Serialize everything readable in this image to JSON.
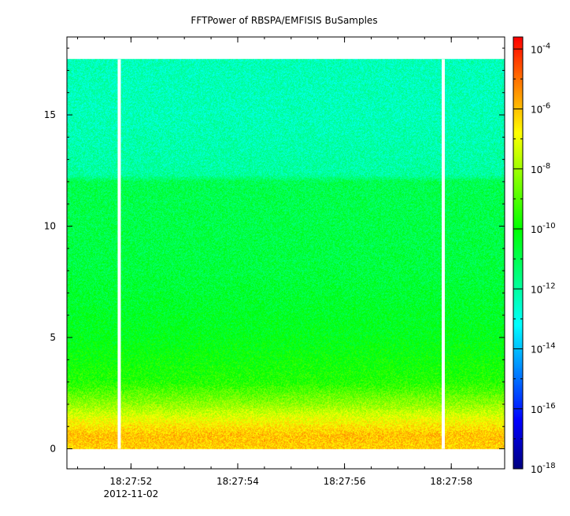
{
  "chart_data": {
    "type": "heatmap",
    "title": "FFTPower of RBSPA/EMFISIS  BuSamples",
    "xlabel": "",
    "ylabel": "",
    "x_axis": {
      "range_seconds": [
        "18:27:50.8",
        "18:27:59.0"
      ],
      "ticks": [
        {
          "label": "18:27:52",
          "sublabel": "2012-11-02",
          "t": 52
        },
        {
          "label": "18:27:54",
          "sublabel": "",
          "t": 54
        },
        {
          "label": "18:27:56",
          "sublabel": "",
          "t": 56
        },
        {
          "label": "18:27:58",
          "sublabel": "",
          "t": 58
        }
      ],
      "minor_ticks_t": [
        51.0,
        51.5,
        52.0,
        52.5,
        53.0,
        53.5,
        54.0,
        54.5,
        55.0,
        55.5,
        56.0,
        56.5,
        57.0,
        57.5,
        58.0,
        58.5
      ]
    },
    "y_axis": {
      "range": [
        -0.9,
        18.5
      ],
      "ticks": [
        0,
        5,
        10,
        15
      ]
    },
    "colorbar": {
      "scale": "log",
      "range_exp": [
        -18,
        -3.6
      ],
      "tick_labels": [
        {
          "base": "10",
          "exp": "-4"
        },
        {
          "base": "10",
          "exp": "-6"
        },
        {
          "base": "10",
          "exp": "-8"
        },
        {
          "base": "10",
          "exp": "-10"
        },
        {
          "base": "10",
          "exp": "-12"
        },
        {
          "base": "10",
          "exp": "-14"
        },
        {
          "base": "10",
          "exp": "-16"
        },
        {
          "base": "10",
          "exp": "-18"
        }
      ],
      "tick_values": [
        -4,
        -6,
        -8,
        -10,
        -12,
        -14,
        -16,
        -18
      ]
    },
    "data_extent": {
      "y_min": 0,
      "y_max": 17.5,
      "t_start": 50.8,
      "t_end": 59.0
    },
    "data_gaps_t": [
      51.78,
      57.85
    ],
    "power_profile_log10": [
      {
        "y": 0.0,
        "value": -6.2
      },
      {
        "y": 0.6,
        "value": -6.0
      },
      {
        "y": 1.2,
        "value": -6.8
      },
      {
        "y": 2.0,
        "value": -8.2
      },
      {
        "y": 3.0,
        "value": -9.6
      },
      {
        "y": 5.0,
        "value": -10.3
      },
      {
        "y": 8.0,
        "value": -10.8
      },
      {
        "y": 12.0,
        "value": -11.0
      },
      {
        "y": 12.3,
        "value": -12.0
      },
      {
        "y": 15.0,
        "value": -12.3
      },
      {
        "y": 17.5,
        "value": -12.3
      }
    ],
    "colors": {
      "colormap": [
        "#000080",
        "#0000ff",
        "#0080ff",
        "#00ffff",
        "#00ff80",
        "#00ff00",
        "#80ff00",
        "#ffff00",
        "#ff8000",
        "#ff0000"
      ],
      "gap": "#ffffff",
      "axis": "#000000"
    }
  }
}
